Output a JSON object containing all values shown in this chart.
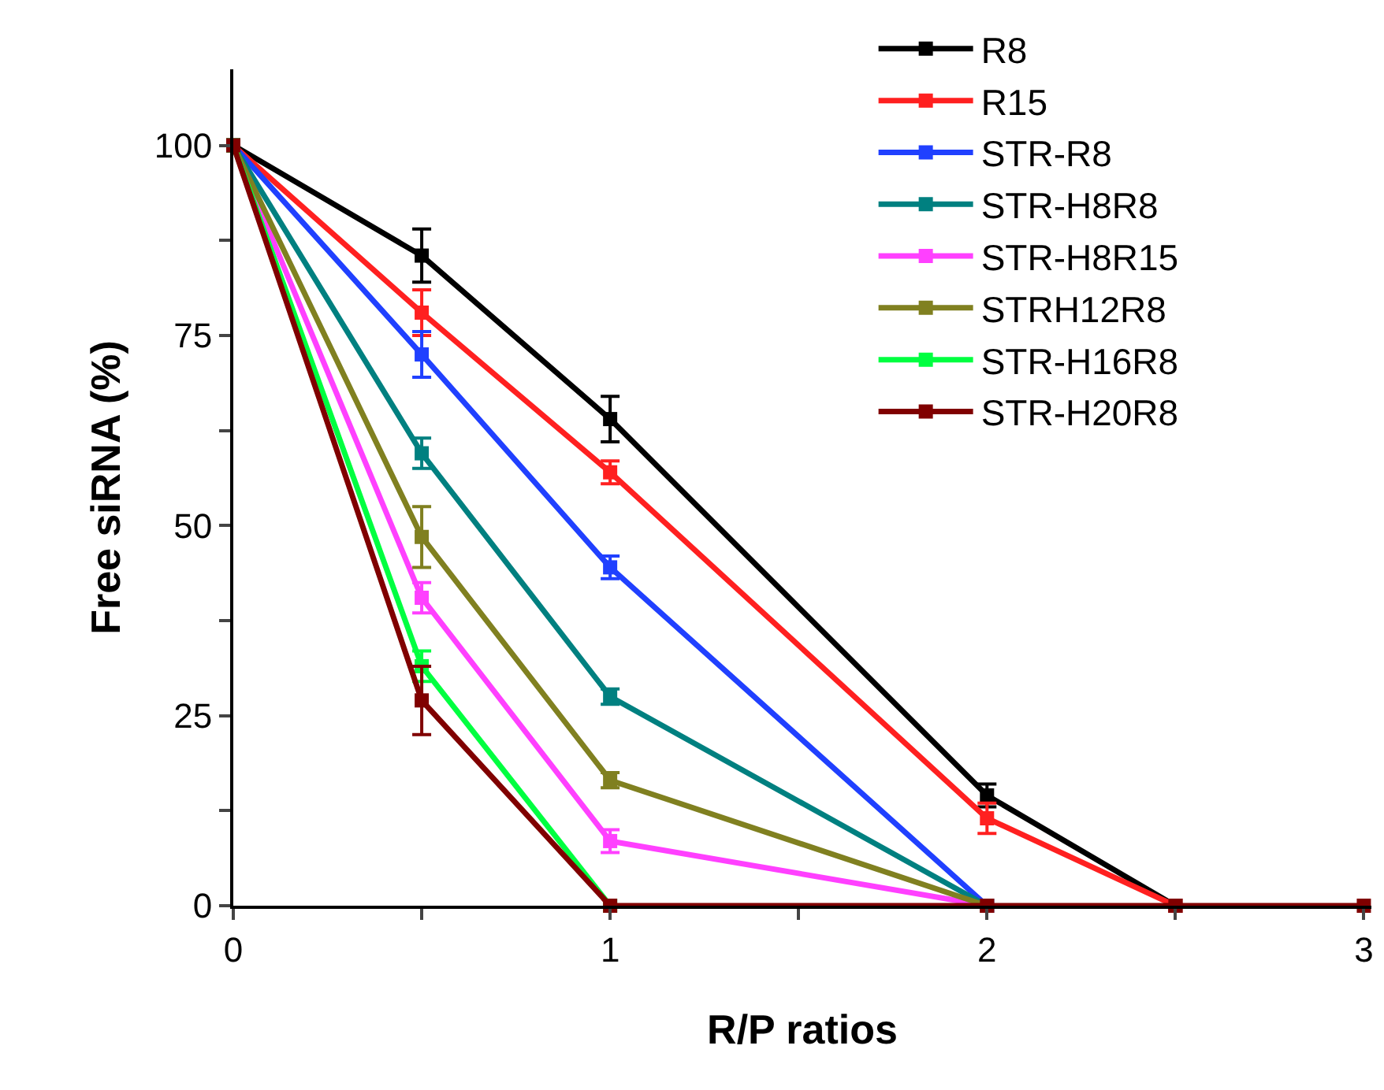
{
  "chart_data": {
    "type": "line",
    "xlabel": "R/P ratios",
    "ylabel": "Free siRNA (%)",
    "x": [
      0,
      0.5,
      1,
      2,
      2.5,
      3
    ],
    "xlim": [
      0,
      3.02
    ],
    "xticks": [
      0,
      {
        "value": 0.5,
        "label": null
      },
      1,
      {
        "value": 1.5,
        "label": null
      },
      2,
      {
        "value": 2.5,
        "label": null
      },
      3
    ],
    "ylim": [
      0,
      110
    ],
    "yticks": [
      0,
      {
        "value": 12.5,
        "label": null
      },
      25,
      {
        "value": 37.5,
        "label": null
      },
      50,
      {
        "value": 62.5,
        "label": null
      },
      75,
      {
        "value": 87.5,
        "label": null
      },
      100
    ],
    "grid": false,
    "legend": "top right",
    "marker": "square",
    "line_style": "solid",
    "series": [
      {
        "name": "R8",
        "color": "#000000",
        "values": [
          100,
          85.5,
          64,
          14.5,
          0,
          null
        ],
        "errors": [
          null,
          3.5,
          3,
          1.5,
          null,
          null
        ]
      },
      {
        "name": "R15",
        "color": "#ff2020",
        "values": [
          100,
          78,
          57,
          11.5,
          0,
          null
        ],
        "errors": [
          null,
          3,
          1.5,
          2,
          null,
          null
        ]
      },
      {
        "name": "STR-R8",
        "color": "#2040ff",
        "values": [
          100,
          72.5,
          44.5,
          0,
          null,
          null
        ],
        "errors": [
          null,
          3,
          1.5,
          null,
          null,
          null
        ]
      },
      {
        "name": "STR-H8R8",
        "color": "#008080",
        "values": [
          100,
          59.5,
          27.5,
          0,
          null,
          null
        ],
        "errors": [
          null,
          2,
          1,
          null,
          null,
          null
        ]
      },
      {
        "name": "STR-H8R15",
        "color": "#ff40ff",
        "values": [
          100,
          40.5,
          8.5,
          0,
          null,
          null
        ],
        "errors": [
          null,
          2,
          1.5,
          null,
          null,
          null
        ]
      },
      {
        "name": "STRH12R8",
        "color": "#808020",
        "values": [
          100,
          48.5,
          16.5,
          0,
          null,
          null
        ],
        "errors": [
          null,
          4,
          1,
          null,
          null,
          null
        ]
      },
      {
        "name": "STR-H16R8",
        "color": "#00ff40",
        "values": [
          100,
          31.5,
          0,
          null,
          null,
          null
        ],
        "errors": [
          null,
          2,
          null,
          null,
          null,
          null
        ]
      },
      {
        "name": "STR-H20R8",
        "color": "#800000",
        "values": [
          100,
          27,
          0,
          0,
          0,
          0
        ],
        "errors": [
          null,
          4.5,
          null,
          null,
          null,
          null
        ]
      }
    ]
  }
}
